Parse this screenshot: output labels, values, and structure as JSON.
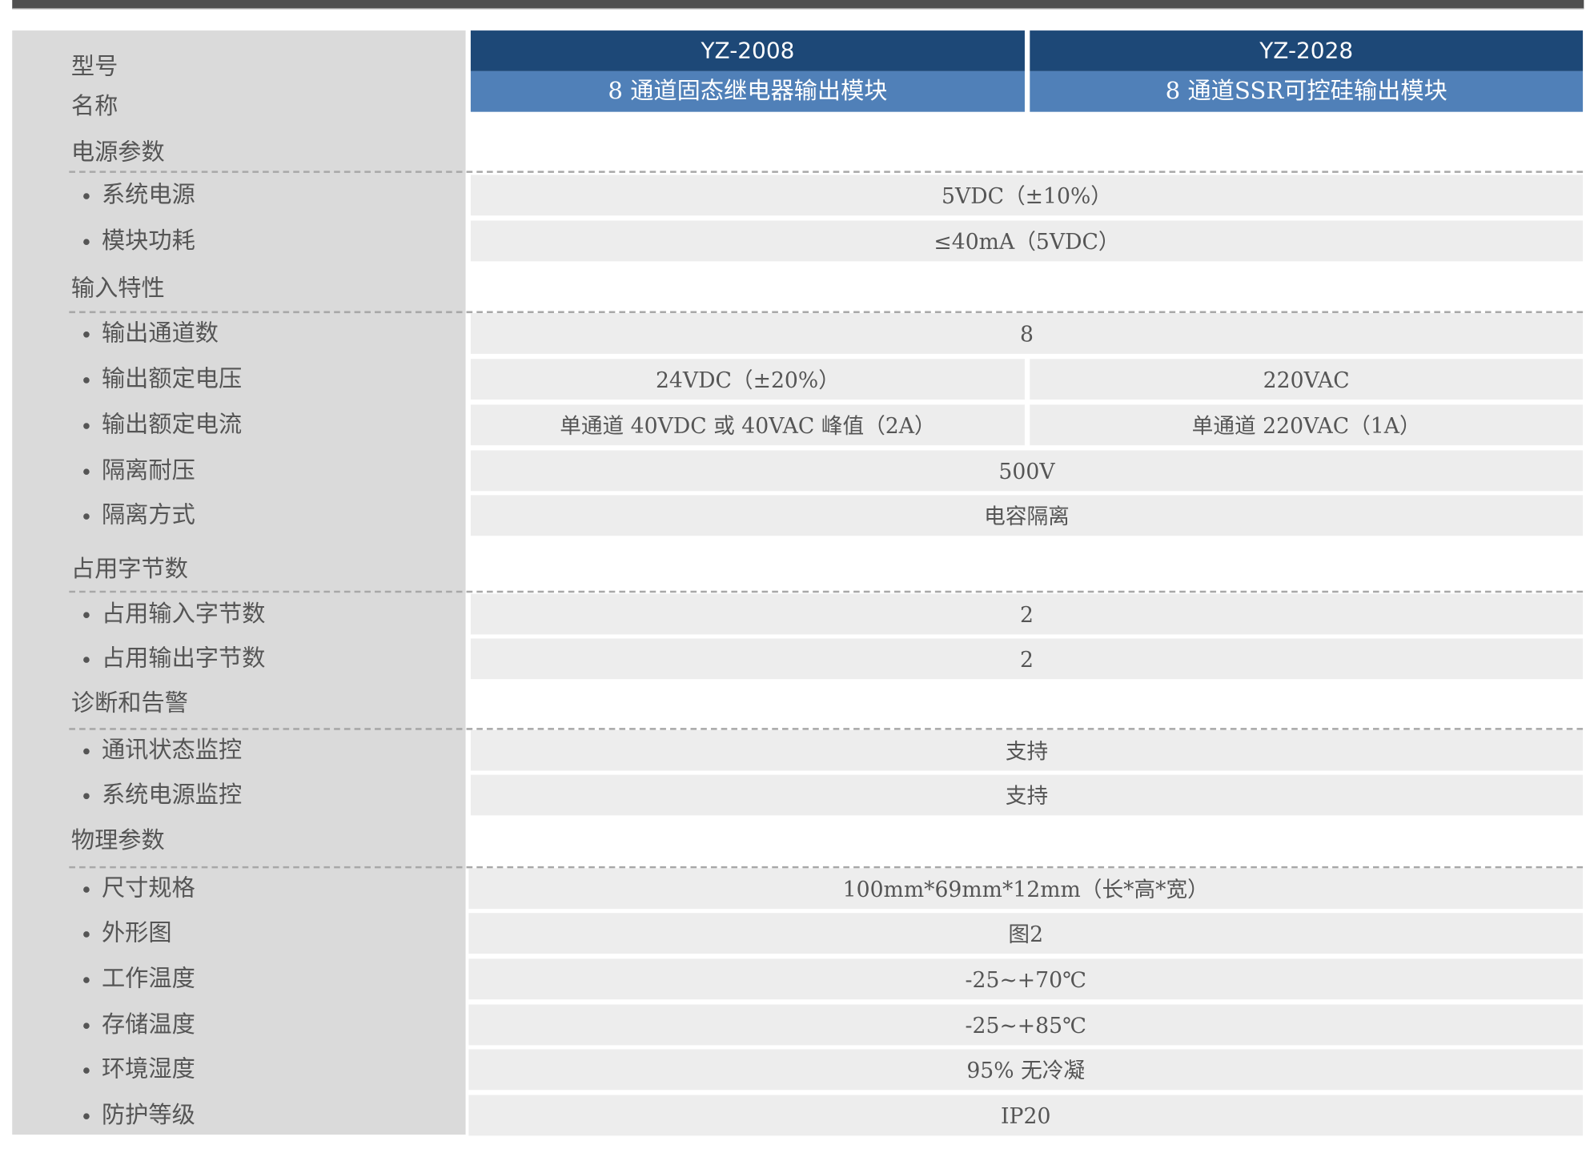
{
  "header": {
    "model_label": "型号",
    "name_label": "名称",
    "products": [
      {
        "model": "YZ-2008",
        "name": "8 通道固态继电器输出模块"
      },
      {
        "model": "YZ-2028",
        "name": "8 通道SSR可控硅输出模块"
      }
    ]
  },
  "colors": {
    "model_bg": "#1d4877",
    "name_bg": "#5080b8",
    "label_bg": "#dadada",
    "cell_bg": "#ededed",
    "topbar": "#4f4f4f"
  },
  "sections": [
    {
      "title": "电源参数",
      "items": [
        {
          "label": "系统电源",
          "value": "5VDC（±10%）"
        },
        {
          "label": "模块功耗",
          "value": "≤40mA（5VDC）"
        }
      ]
    },
    {
      "title": "输入特性",
      "items": [
        {
          "label": "输出通道数",
          "value": "8"
        },
        {
          "label": "输出额定电压",
          "values": [
            "24VDC（±20%）",
            "220VAC"
          ]
        },
        {
          "label": "输出额定电流",
          "values": [
            "单通道 40VDC 或 40VAC 峰值（2A）",
            "单通道 220VAC（1A）"
          ]
        },
        {
          "label": "隔离耐压",
          "value": "500V"
        },
        {
          "label": "隔离方式",
          "value": "电容隔离"
        }
      ]
    },
    {
      "title": "占用字节数",
      "items": [
        {
          "label": "占用输入字节数",
          "value": "2"
        },
        {
          "label": "占用输出字节数",
          "value": "2"
        }
      ]
    },
    {
      "title": "诊断和告警",
      "items": [
        {
          "label": "通讯状态监控",
          "value": "支持"
        },
        {
          "label": "系统电源监控",
          "value": "支持"
        }
      ]
    },
    {
      "title": "物理参数",
      "items": [
        {
          "label": "尺寸规格",
          "value": "100mm*69mm*12mm（长*高*宽）"
        },
        {
          "label": "外形图",
          "value": "图2"
        },
        {
          "label": "工作温度",
          "value": "-25~+70℃"
        },
        {
          "label": "存储温度",
          "value": "-25~+85℃"
        },
        {
          "label": "环境湿度",
          "value": "95% 无冷凝"
        },
        {
          "label": "防护等级",
          "value": "IP20"
        }
      ]
    }
  ]
}
